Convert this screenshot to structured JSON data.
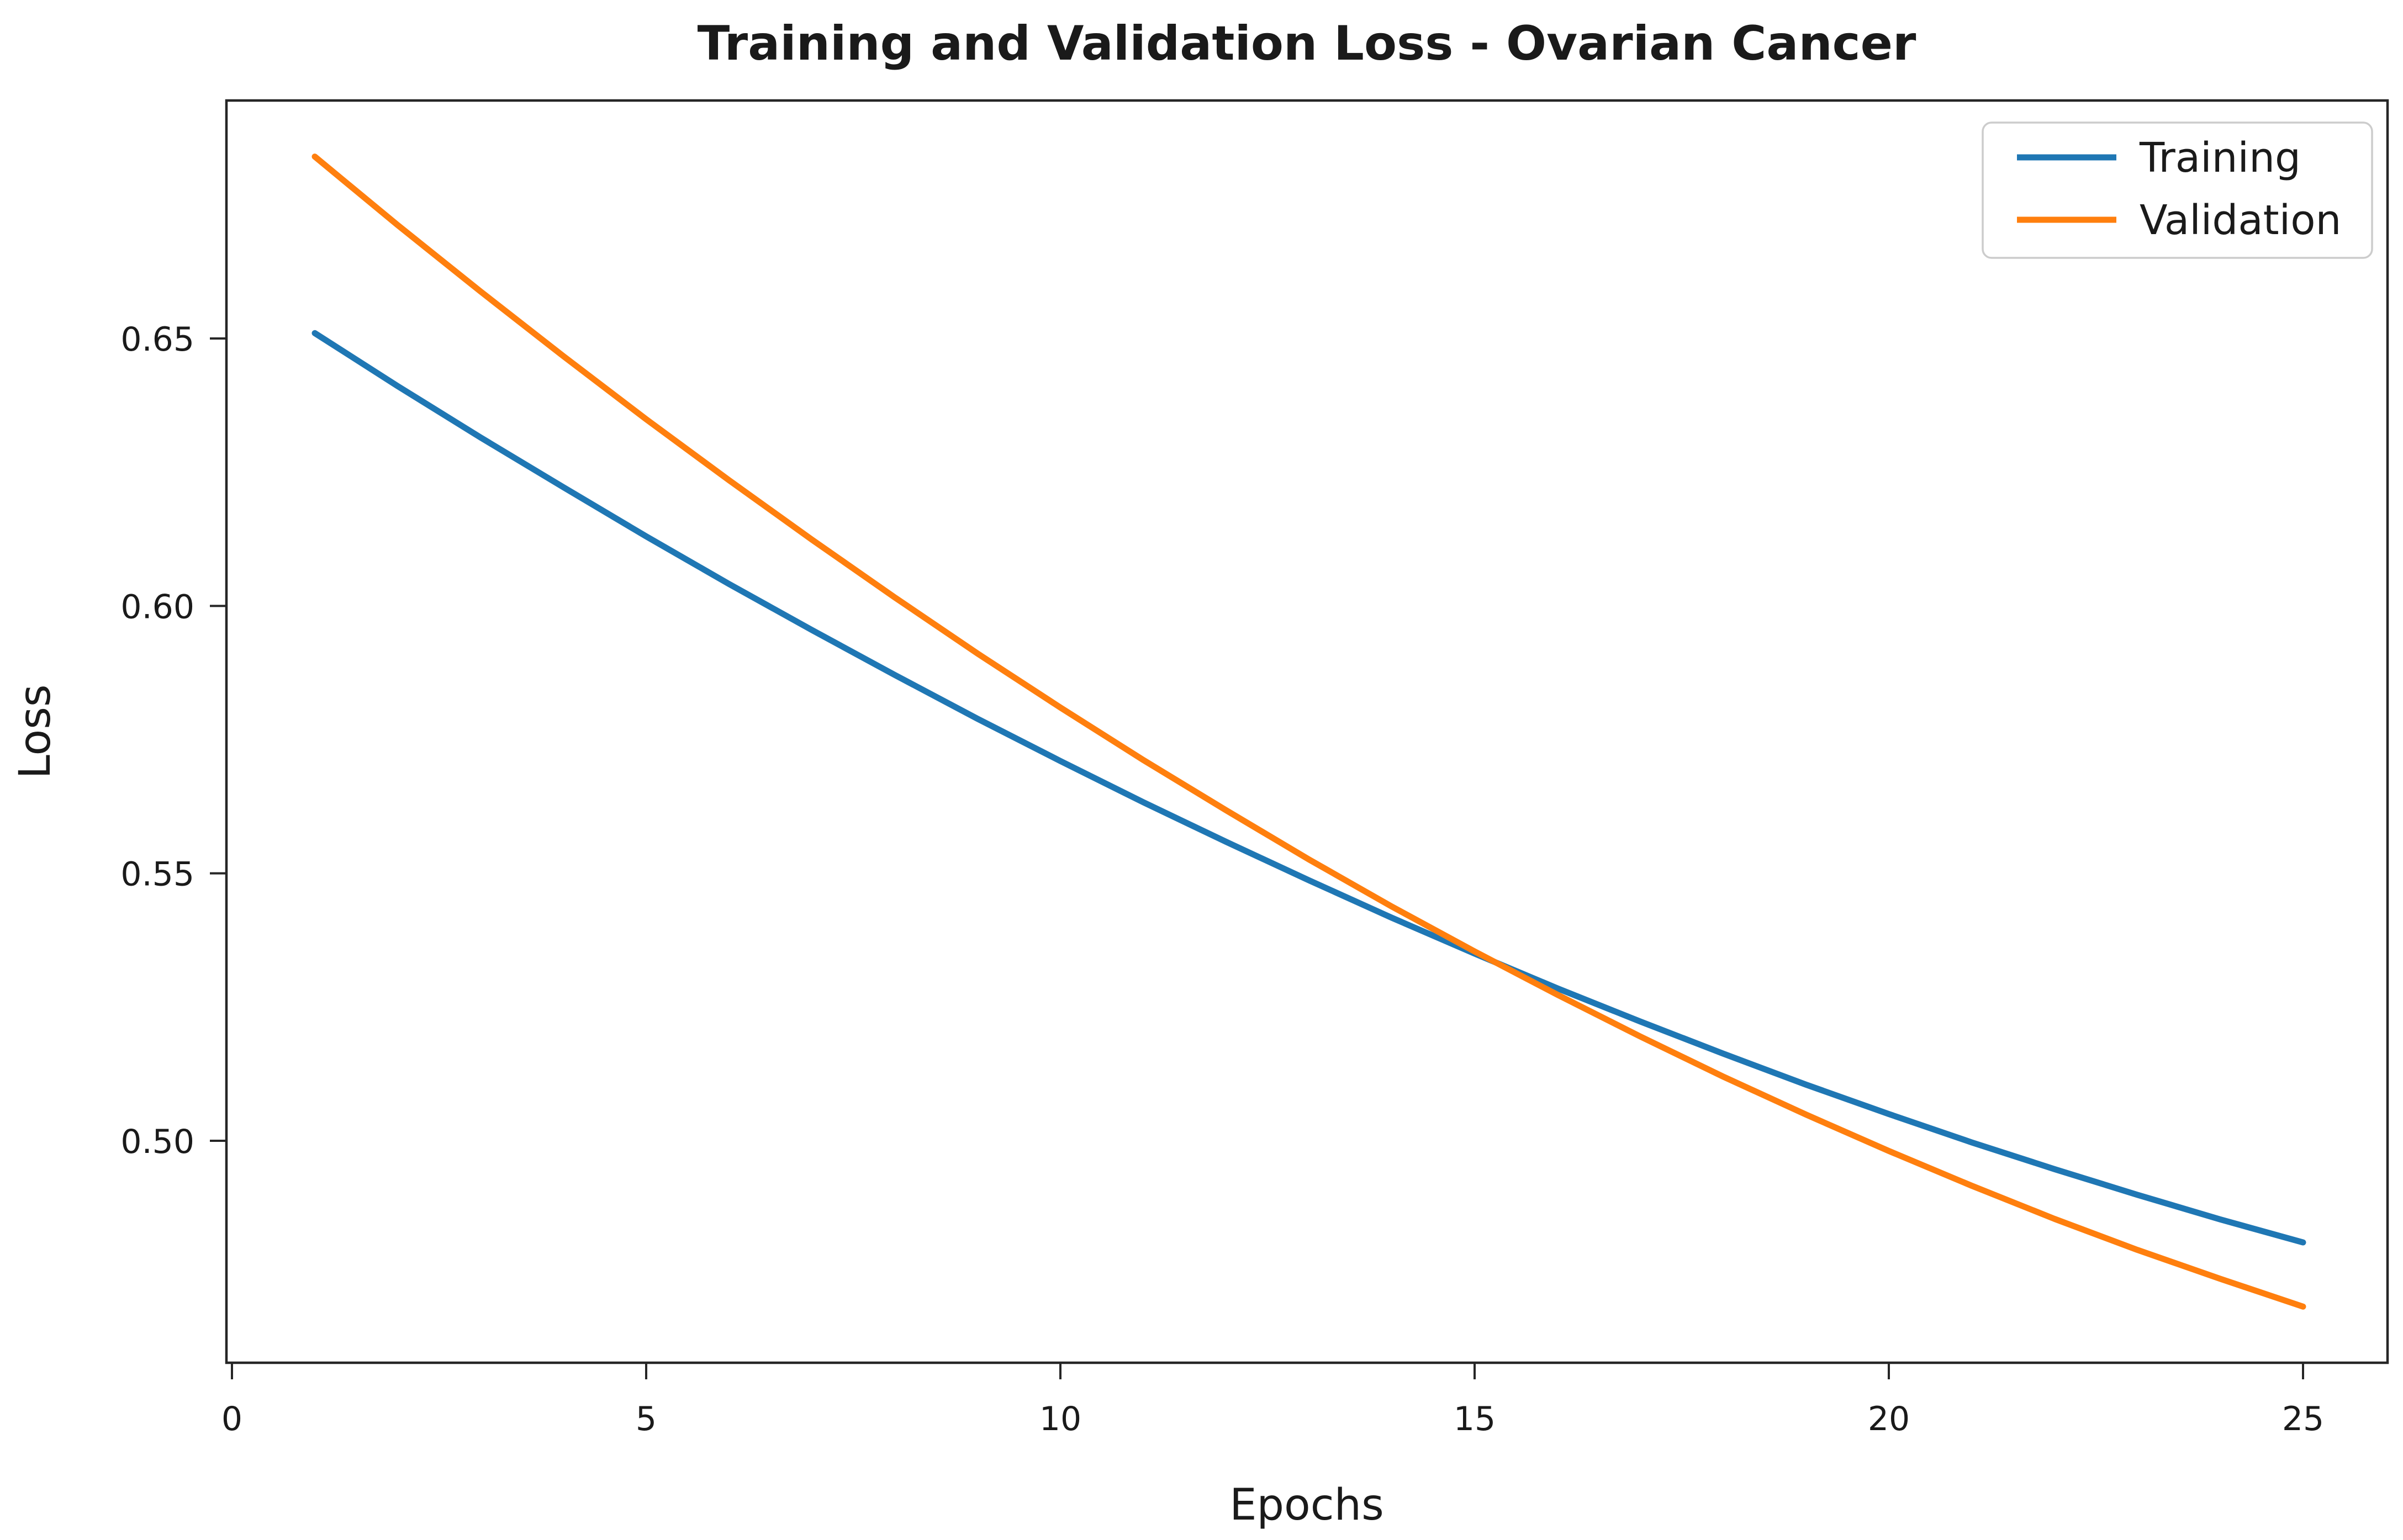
{
  "chart_data": {
    "type": "line",
    "title": "Training and Validation Loss - Ovarian Cancer",
    "xlabel": "Epochs",
    "ylabel": "Loss",
    "grid": false,
    "xlim": [
      -0.1,
      26.1
    ],
    "ylim": [
      0.458,
      0.695
    ],
    "x_ticks": [
      0,
      5,
      10,
      15,
      20,
      25
    ],
    "y_ticks": [
      0.5,
      0.55,
      0.6,
      0.65
    ],
    "y_tick_labels": [
      "0.50",
      "0.55",
      "0.60",
      "0.65"
    ],
    "x": [
      1,
      2,
      3,
      4,
      5,
      6,
      7,
      8,
      9,
      10,
      11,
      12,
      13,
      14,
      15,
      16,
      17,
      18,
      19,
      20,
      21,
      22,
      23,
      24,
      25
    ],
    "series": [
      {
        "name": "Training",
        "color": "#1f77b4",
        "values": [
          0.651,
          0.6411,
          0.6315,
          0.6222,
          0.613,
          0.6041,
          0.5955,
          0.5871,
          0.5789,
          0.571,
          0.5633,
          0.5559,
          0.5487,
          0.5417,
          0.535,
          0.5285,
          0.5223,
          0.5163,
          0.5105,
          0.505,
          0.4997,
          0.4947,
          0.4899,
          0.4853,
          0.481
        ]
      },
      {
        "name": "Validation",
        "color": "#ff7f0e",
        "values": [
          0.684,
          0.6712,
          0.6588,
          0.6467,
          0.6349,
          0.6235,
          0.6124,
          0.6016,
          0.5911,
          0.581,
          0.5712,
          0.5618,
          0.5526,
          0.5438,
          0.5354,
          0.5273,
          0.5195,
          0.512,
          0.5049,
          0.4981,
          0.4916,
          0.4854,
          0.4796,
          0.4742,
          0.469
        ]
      }
    ],
    "legend": {
      "position": "upper right",
      "entries": [
        "Training",
        "Validation"
      ],
      "border_color": "#cccccc",
      "background": "#ffffff"
    },
    "axis_color": "#262626",
    "text_color": "#1a1a1a"
  }
}
